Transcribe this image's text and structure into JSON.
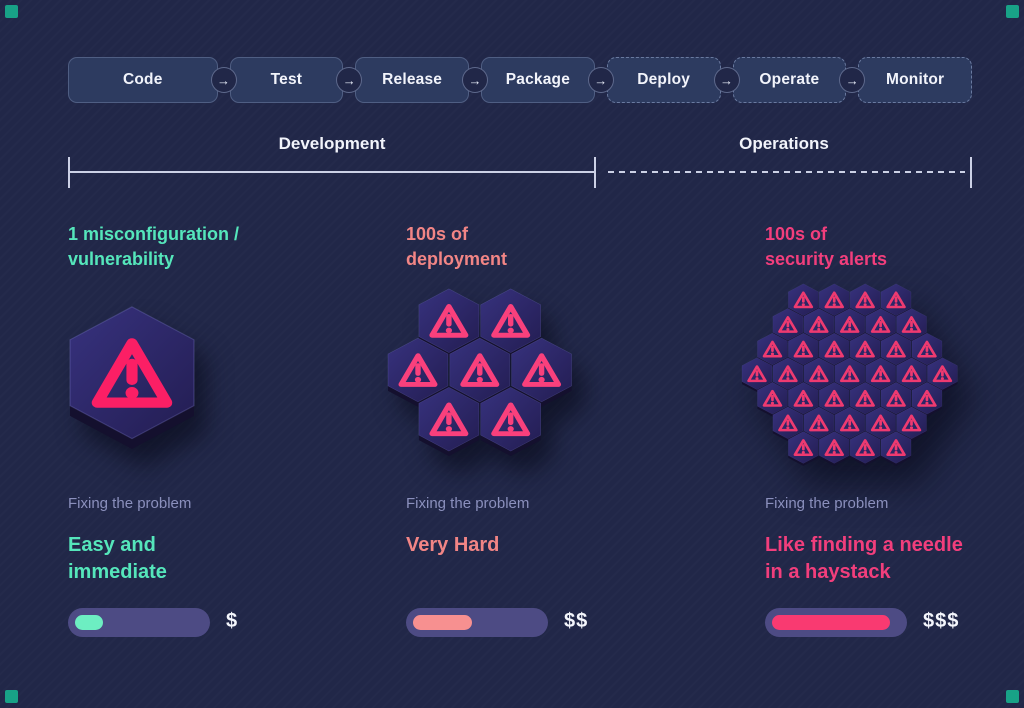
{
  "corner_marker": {
    "color": "#18a287"
  },
  "pipeline": {
    "arrow_symbol": "→",
    "stages": [
      {
        "label": "Code",
        "phase": "development"
      },
      {
        "label": "Test",
        "phase": "development"
      },
      {
        "label": "Release",
        "phase": "development"
      },
      {
        "label": "Package",
        "phase": "development"
      },
      {
        "label": "Deploy",
        "phase": "operations"
      },
      {
        "label": "Operate",
        "phase": "operations"
      },
      {
        "label": "Monitor",
        "phase": "operations"
      }
    ]
  },
  "phases": {
    "development": {
      "label": "Development",
      "line_style": "solid"
    },
    "operations": {
      "label": "Operations",
      "line_style": "dashed"
    }
  },
  "fix_label_color": "#8b90bd",
  "columns": [
    {
      "heading": "1 misconfiguration /\nvulnerability",
      "heading_color": "#55e6bb",
      "hex_cluster": {
        "tile_count": 1,
        "rows": [
          1
        ],
        "hex_width": 124,
        "triangle_color": "#fb1f65"
      },
      "fix_label": "Fixing the problem",
      "result": "Easy and\nimmediate",
      "result_color": "#55e6bb",
      "bar": {
        "fill_color": "#6deec2",
        "fill_pct": 22
      },
      "cost": "$"
    },
    {
      "heading": "100s of\ndeployment",
      "heading_color": "#f28585",
      "hex_cluster": {
        "tile_count": 7,
        "rows": [
          2,
          3,
          2
        ],
        "hex_width": 60,
        "triangle_color": "#f9407c"
      },
      "fix_label": "Fixing the problem",
      "result": "Very Hard",
      "result_color": "#f28585",
      "bar": {
        "fill_color": "#f79090",
        "fill_pct": 46
      },
      "cost": "$$"
    },
    {
      "heading": "100s of\nsecurity alerts",
      "heading_color": "#f23e7c",
      "hex_cluster": {
        "tile_count": 37,
        "rows": [
          4,
          5,
          6,
          7,
          6,
          5,
          4
        ],
        "hex_width": 30,
        "triangle_color": "#ee3a70"
      },
      "fix_label": "Fixing the problem",
      "result": "Like finding a needle\nin a haystack",
      "result_color": "#f23e7c",
      "bar": {
        "fill_color": "#f93a71",
        "fill_pct": 92
      },
      "cost": "$$$"
    }
  ]
}
